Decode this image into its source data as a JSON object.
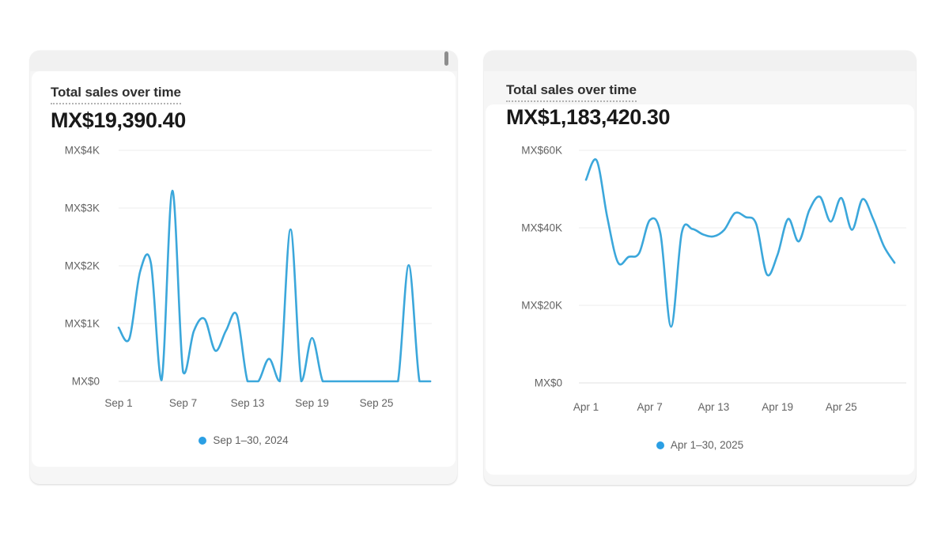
{
  "accent_color": "#3ba7db",
  "legend_dot_color": "#2b9fe4",
  "cards": [
    {
      "title": "Total sales over time",
      "total": "MX$19,390.40",
      "legend": "Sep 1–30, 2024"
    },
    {
      "title": "Total sales over time",
      "total": "MX$1,183,420.30",
      "legend": "Apr 1–30, 2025"
    }
  ],
  "chart_data": [
    {
      "type": "line",
      "title": "Total sales over time",
      "total_label": "MX$19,390.40",
      "legend": "Sep 1–30, 2024",
      "legend_position": "bottom-center",
      "grid": true,
      "x_unit": "day of September 2024",
      "x": [
        1,
        2,
        3,
        4,
        5,
        6,
        7,
        8,
        9,
        10,
        11,
        12,
        13,
        14,
        15,
        16,
        17,
        18,
        19,
        20,
        21,
        22,
        23,
        24,
        25,
        26,
        27,
        28,
        29,
        30
      ],
      "values": [
        930,
        740,
        1900,
        2050,
        20,
        3300,
        160,
        870,
        1080,
        530,
        880,
        1150,
        0,
        0,
        390,
        0,
        2630,
        0,
        750,
        0,
        0,
        0,
        0,
        0,
        0,
        0,
        0,
        2010,
        0,
        0
      ],
      "ylim": [
        0,
        4000
      ],
      "y_ticks": [
        {
          "value": 4000,
          "label": "MX$4K"
        },
        {
          "value": 3000,
          "label": "MX$3K"
        },
        {
          "value": 2000,
          "label": "MX$2K"
        },
        {
          "value": 1000,
          "label": "MX$1K"
        },
        {
          "value": 0,
          "label": "MX$0"
        }
      ],
      "x_ticks": [
        {
          "day": 1,
          "label": "Sep 1"
        },
        {
          "day": 7,
          "label": "Sep 7"
        },
        {
          "day": 13,
          "label": "Sep 13"
        },
        {
          "day": 19,
          "label": "Sep 19"
        },
        {
          "day": 25,
          "label": "Sep 25"
        }
      ],
      "line_color": "#3ba7db"
    },
    {
      "type": "line",
      "title": "Total sales over time",
      "total_label": "MX$1,183,420.30",
      "legend": "Apr 1–30, 2025",
      "legend_position": "bottom-center",
      "grid": true,
      "x_unit": "day of April 2025",
      "x": [
        1,
        2,
        3,
        4,
        5,
        6,
        7,
        8,
        9,
        10,
        11,
        12,
        13,
        14,
        15,
        16,
        17,
        18,
        19,
        20,
        21,
        22,
        23,
        24,
        25,
        26,
        27,
        28,
        29,
        30
      ],
      "values": [
        52400,
        57400,
        42700,
        31100,
        32500,
        33500,
        42000,
        38500,
        14500,
        38700,
        39700,
        38300,
        37800,
        39500,
        43800,
        42800,
        41000,
        28000,
        33000,
        42300,
        36500,
        44600,
        48000,
        41600,
        47700,
        39500,
        47400,
        42300,
        35300,
        31000
      ],
      "ylim": [
        0,
        60000
      ],
      "y_ticks": [
        {
          "value": 60000,
          "label": "MX$60K"
        },
        {
          "value": 40000,
          "label": "MX$40K"
        },
        {
          "value": 20000,
          "label": "MX$20K"
        },
        {
          "value": 0,
          "label": "MX$0"
        }
      ],
      "x_ticks": [
        {
          "day": 1,
          "label": "Apr 1"
        },
        {
          "day": 7,
          "label": "Apr 7"
        },
        {
          "day": 13,
          "label": "Apr 13"
        },
        {
          "day": 19,
          "label": "Apr 19"
        },
        {
          "day": 25,
          "label": "Apr 25"
        }
      ],
      "line_color": "#3ba7db"
    }
  ]
}
